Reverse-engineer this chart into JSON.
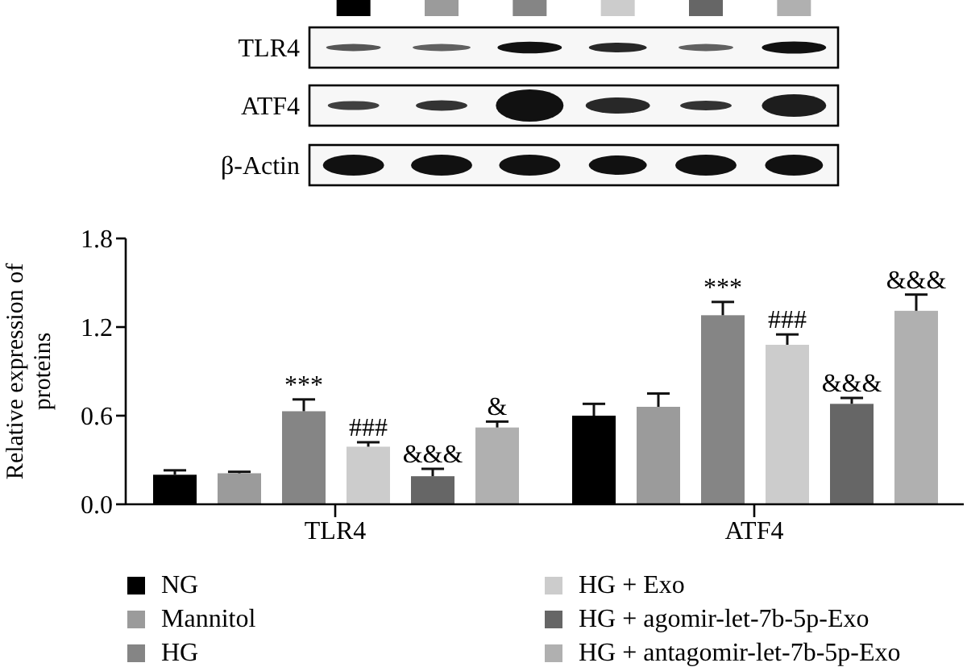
{
  "chart_data": {
    "type": "bar",
    "ylabel": "Relative expression of proteins",
    "categories": [
      "TLR4",
      "ATF4"
    ],
    "series": [
      {
        "name": "NG",
        "color": "#000000",
        "values": [
          0.2,
          0.6
        ],
        "errors": [
          0.03,
          0.08
        ]
      },
      {
        "name": "Mannitol",
        "color": "#9b9b9b",
        "values": [
          0.21,
          0.66
        ],
        "errors": [
          0.01,
          0.09
        ]
      },
      {
        "name": "HG",
        "color": "#858585",
        "values": [
          0.63,
          1.28
        ],
        "errors": [
          0.08,
          0.09
        ]
      },
      {
        "name": "HG + Exo",
        "color": "#cccccc",
        "values": [
          0.39,
          1.08
        ],
        "errors": [
          0.03,
          0.07
        ]
      },
      {
        "name": "HG + agomir-let-7b-5p-Exo",
        "color": "#666666",
        "values": [
          0.19,
          0.68
        ],
        "errors": [
          0.05,
          0.04
        ]
      },
      {
        "name": "HG + antagomir-let-7b-5p-Exo",
        "color": "#b0b0b0",
        "values": [
          0.52,
          1.31
        ],
        "errors": [
          0.04,
          0.11
        ]
      }
    ],
    "ylim": [
      0,
      1.8
    ],
    "yticks": [
      {
        "value": 0,
        "label": "0.0"
      },
      0.6,
      1.2,
      1.8
    ],
    "legend": "bottom",
    "annotations": [
      "***",
      "###",
      "&&&",
      "&",
      "***",
      "###",
      "&&&",
      "&&&",
      "TLR4",
      "ATF4",
      "β-Actin"
    ]
  }
}
